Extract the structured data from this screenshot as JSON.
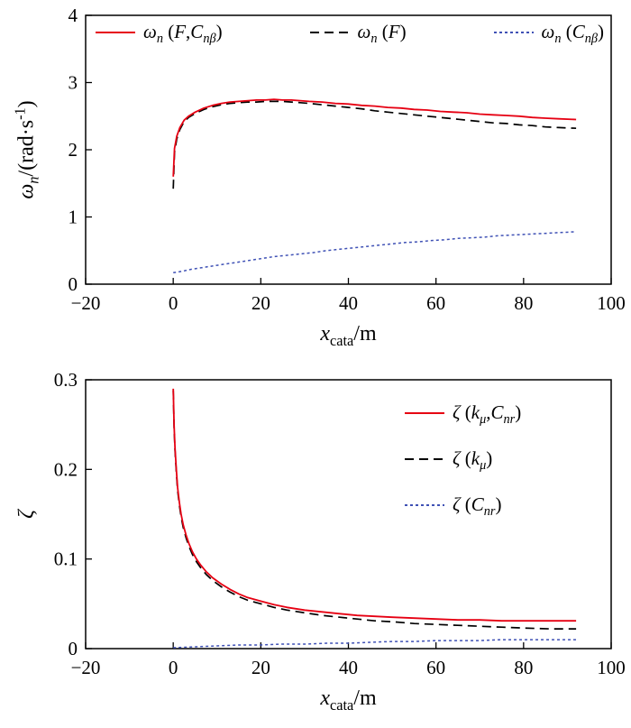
{
  "page": {
    "background": "#ffffff"
  },
  "chart_data": [
    {
      "type": "line",
      "title": "",
      "xlabel": "*x*_{cata}/m",
      "ylabel": "*ω*_{*n*}/(rad·s^{-1})",
      "xlim": [
        -20,
        100
      ],
      "ylim": [
        0,
        4
      ],
      "xticks": [
        -20,
        0,
        20,
        40,
        60,
        80,
        100
      ],
      "xtick_labels": [
        "−20",
        "0",
        "20",
        "40",
        "60",
        "80",
        "100"
      ],
      "yticks": [
        0,
        1,
        2,
        3,
        4
      ],
      "ytick_labels": [
        "0",
        "1",
        "2",
        "3",
        "4"
      ],
      "grid": false,
      "legend_position": "top-inside-row",
      "series": [
        {
          "name": "omega-n-F-Cnbeta",
          "label": "*ω*_{*n*} (*F*,*C*_{*nβ*})",
          "color": "#e60012",
          "dash": "",
          "width": 1.8,
          "x": [
            0,
            0.3,
            0.8,
            1.5,
            2.5,
            3.5,
            5,
            7,
            9,
            11,
            13,
            15,
            17,
            19,
            21,
            23,
            25,
            27,
            29,
            31,
            34,
            37,
            40,
            43,
            46,
            49,
            52,
            55,
            58,
            61,
            64,
            67,
            70,
            73,
            76,
            79,
            82,
            85,
            88,
            92
          ],
          "y": [
            1.6,
            2.02,
            2.2,
            2.33,
            2.44,
            2.5,
            2.56,
            2.62,
            2.66,
            2.69,
            2.71,
            2.72,
            2.73,
            2.74,
            2.74,
            2.75,
            2.74,
            2.74,
            2.73,
            2.72,
            2.71,
            2.69,
            2.68,
            2.66,
            2.65,
            2.63,
            2.62,
            2.6,
            2.59,
            2.57,
            2.56,
            2.55,
            2.53,
            2.52,
            2.51,
            2.5,
            2.48,
            2.47,
            2.46,
            2.45
          ]
        },
        {
          "name": "omega-n-F",
          "label": "*ω*_{*n*} (*F*)",
          "color": "#000000",
          "dash": "10 6",
          "width": 1.7,
          "x": [
            0,
            0.3,
            0.8,
            1.5,
            2.5,
            3.5,
            5,
            7,
            9,
            11,
            13,
            15,
            17,
            19,
            21,
            23,
            25,
            27,
            29,
            31,
            34,
            37,
            40,
            43,
            46,
            49,
            52,
            55,
            58,
            61,
            64,
            67,
            70,
            73,
            76,
            79,
            82,
            85,
            88,
            92
          ],
          "y": [
            1.42,
            1.96,
            2.16,
            2.3,
            2.42,
            2.48,
            2.54,
            2.6,
            2.64,
            2.67,
            2.69,
            2.7,
            2.71,
            2.71,
            2.72,
            2.72,
            2.72,
            2.71,
            2.7,
            2.69,
            2.67,
            2.65,
            2.63,
            2.61,
            2.58,
            2.56,
            2.54,
            2.52,
            2.5,
            2.48,
            2.46,
            2.44,
            2.42,
            2.4,
            2.39,
            2.37,
            2.36,
            2.34,
            2.33,
            2.32
          ]
        },
        {
          "name": "omega-n-Cnbeta",
          "label": "*ω*_{*n*} (*C*_{*nβ*})",
          "color": "#3f51b5",
          "dash": "3 3",
          "width": 1.5,
          "x": [
            0,
            2,
            4,
            6,
            8,
            10,
            12,
            14,
            16,
            18,
            20,
            23,
            26,
            29,
            32,
            35,
            38,
            41,
            44,
            47,
            50,
            53,
            56,
            59,
            62,
            65,
            68,
            71,
            74,
            77,
            80,
            83,
            86,
            89,
            92
          ],
          "y": [
            0.17,
            0.19,
            0.22,
            0.24,
            0.26,
            0.28,
            0.3,
            0.32,
            0.34,
            0.36,
            0.38,
            0.41,
            0.43,
            0.45,
            0.47,
            0.5,
            0.52,
            0.54,
            0.56,
            0.58,
            0.6,
            0.62,
            0.63,
            0.65,
            0.66,
            0.68,
            0.69,
            0.7,
            0.72,
            0.73,
            0.74,
            0.75,
            0.76,
            0.77,
            0.78
          ]
        }
      ]
    },
    {
      "type": "line",
      "title": "",
      "xlabel": "*x*_{cata}/m",
      "ylabel": "*ζ*",
      "xlim": [
        -20,
        100
      ],
      "ylim": [
        0,
        0.3
      ],
      "xticks": [
        -20,
        0,
        20,
        40,
        60,
        80,
        100
      ],
      "xtick_labels": [
        "−20",
        "0",
        "20",
        "40",
        "60",
        "80",
        "100"
      ],
      "yticks": [
        0,
        0.1,
        0.2,
        0.3
      ],
      "ytick_labels": [
        "0",
        "0.1",
        "0.2",
        "0.3"
      ],
      "grid": false,
      "legend_position": "top-right-inside-column",
      "series": [
        {
          "name": "zeta-kmu-Cnr",
          "label": "*ζ* (*k*_{*μ*},*C*_{*nr*})",
          "color": "#e60012",
          "dash": "",
          "width": 1.8,
          "x": [
            0,
            0.2,
            0.4,
            0.7,
            1,
            1.4,
            1.8,
            2.3,
            2.9,
            3.6,
            4.4,
            5.3,
            6.3,
            7.5,
            9,
            11,
            13,
            15,
            17,
            20,
            23,
            26,
            30,
            34,
            38,
            42,
            46,
            50,
            55,
            60,
            65,
            70,
            75,
            80,
            86,
            92
          ],
          "y": [
            0.29,
            0.25,
            0.225,
            0.2,
            0.18,
            0.163,
            0.15,
            0.138,
            0.127,
            0.117,
            0.108,
            0.1,
            0.093,
            0.086,
            0.079,
            0.072,
            0.066,
            0.061,
            0.057,
            0.053,
            0.049,
            0.046,
            0.043,
            0.041,
            0.039,
            0.037,
            0.036,
            0.035,
            0.034,
            0.033,
            0.032,
            0.032,
            0.031,
            0.031,
            0.031,
            0.031
          ]
        },
        {
          "name": "zeta-kmu",
          "label": "*ζ* (*k*_{*μ*})",
          "color": "#000000",
          "dash": "10 6",
          "width": 1.7,
          "x": [
            0,
            0.2,
            0.4,
            0.7,
            1,
            1.4,
            1.8,
            2.3,
            2.9,
            3.6,
            4.4,
            5.3,
            6.3,
            7.5,
            9,
            11,
            13,
            15,
            17,
            20,
            23,
            26,
            30,
            34,
            38,
            42,
            46,
            50,
            55,
            60,
            65,
            70,
            75,
            80,
            86,
            92
          ],
          "y": [
            0.288,
            0.248,
            0.222,
            0.197,
            0.177,
            0.16,
            0.147,
            0.135,
            0.124,
            0.114,
            0.105,
            0.097,
            0.09,
            0.083,
            0.076,
            0.069,
            0.063,
            0.058,
            0.054,
            0.05,
            0.046,
            0.043,
            0.04,
            0.037,
            0.035,
            0.033,
            0.031,
            0.03,
            0.028,
            0.027,
            0.026,
            0.025,
            0.024,
            0.023,
            0.022,
            0.022
          ]
        },
        {
          "name": "zeta-Cnr",
          "label": "*ζ* (*C*_{*nr*})",
          "color": "#3f51b5",
          "dash": "3 3",
          "width": 1.5,
          "x": [
            0,
            5,
            10,
            15,
            20,
            25,
            30,
            35,
            40,
            45,
            50,
            55,
            60,
            65,
            70,
            75,
            80,
            86,
            92
          ],
          "y": [
            0.001,
            0.002,
            0.003,
            0.004,
            0.004,
            0.005,
            0.005,
            0.006,
            0.006,
            0.007,
            0.008,
            0.008,
            0.009,
            0.009,
            0.009,
            0.01,
            0.01,
            0.01,
            0.01
          ]
        }
      ]
    }
  ]
}
